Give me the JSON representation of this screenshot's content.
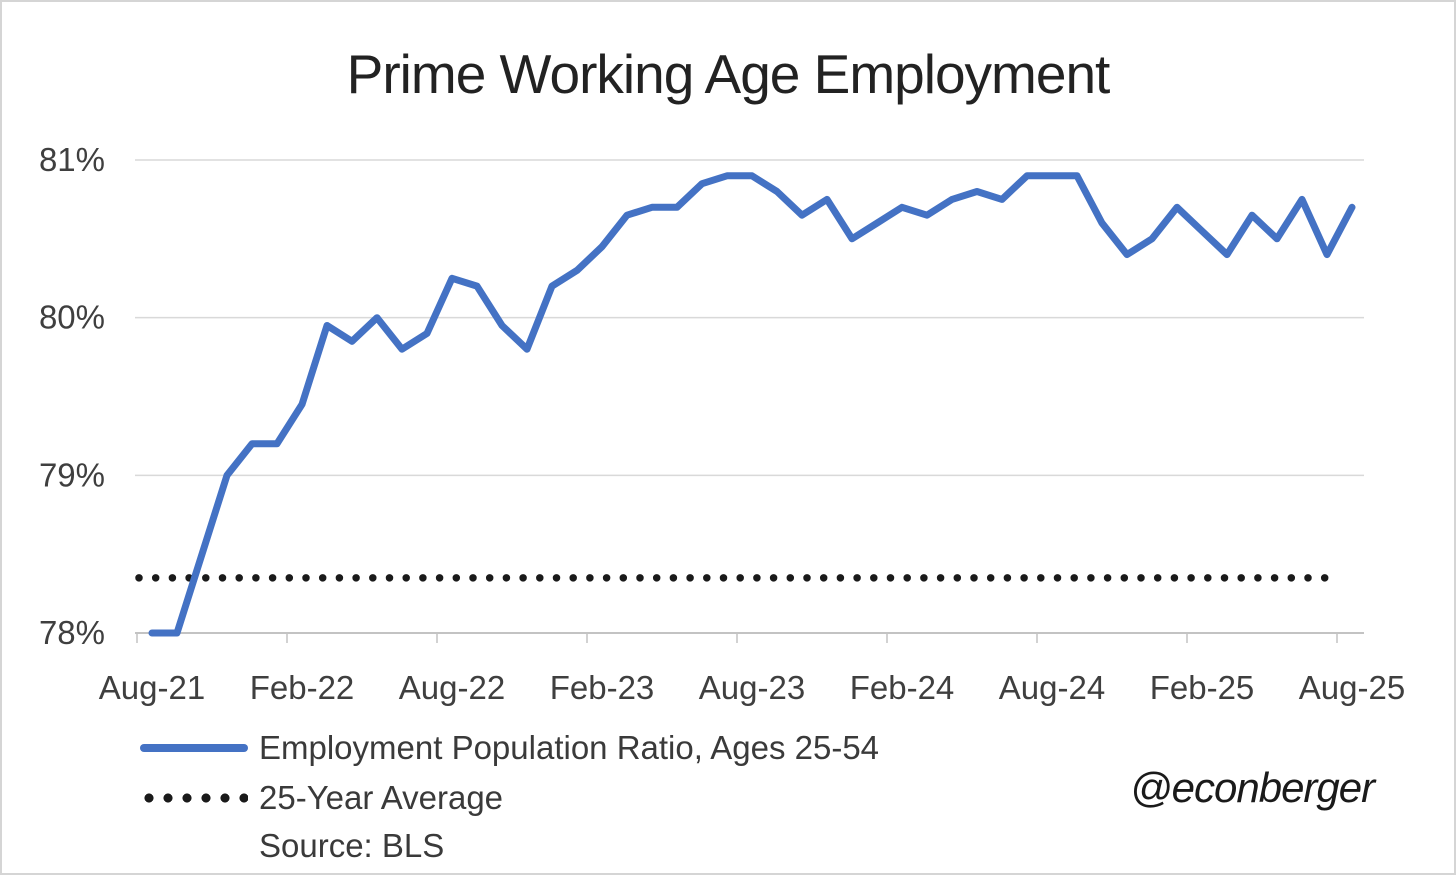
{
  "title": "Prime Working Age Employment",
  "attribution": "@econberger",
  "legend": {
    "series1_label": "Employment Population Ratio, Ages 25-54",
    "series2_label": "25-Year Average",
    "source": "Source: BLS"
  },
  "chart_data": {
    "type": "line",
    "title": "Prime Working Age Employment",
    "x": [
      "Aug-21",
      "Sep-21",
      "Oct-21",
      "Nov-21",
      "Dec-21",
      "Jan-22",
      "Feb-22",
      "Mar-22",
      "Apr-22",
      "May-22",
      "Jun-22",
      "Jul-22",
      "Aug-22",
      "Sep-22",
      "Oct-22",
      "Nov-22",
      "Dec-22",
      "Jan-23",
      "Feb-23",
      "Mar-23",
      "Apr-23",
      "May-23",
      "Jun-23",
      "Jul-23",
      "Aug-23",
      "Sep-23",
      "Oct-23",
      "Nov-23",
      "Dec-23",
      "Jan-24",
      "Feb-24",
      "Mar-24",
      "Apr-24",
      "May-24",
      "Jun-24",
      "Jul-24",
      "Aug-24",
      "Sep-24",
      "Oct-24",
      "Nov-24",
      "Dec-24",
      "Jan-25",
      "Feb-25",
      "Mar-25",
      "Apr-25",
      "May-25",
      "Jun-25",
      "Jul-25",
      "Aug-25"
    ],
    "series": [
      {
        "name": "Employment Population Ratio, Ages 25-54",
        "style": "solid",
        "color": "#4472C4",
        "values": [
          78.0,
          78.0,
          78.5,
          79.0,
          79.2,
          79.2,
          79.45,
          79.95,
          79.85,
          80.0,
          79.8,
          79.9,
          80.25,
          80.2,
          79.95,
          79.8,
          80.2,
          80.3,
          80.45,
          80.65,
          80.7,
          80.7,
          80.85,
          80.9,
          80.9,
          80.8,
          80.65,
          80.75,
          80.5,
          80.6,
          80.7,
          80.65,
          80.75,
          80.8,
          80.75,
          80.9,
          80.9,
          80.9,
          80.6,
          80.4,
          80.5,
          80.7,
          80.55,
          80.4,
          80.65,
          80.5,
          80.75,
          80.4,
          80.7
        ]
      },
      {
        "name": "25-Year Average",
        "style": "dotted",
        "color": "#1a1a1a",
        "value": 78.35
      }
    ],
    "ylim": [
      78,
      81
    ],
    "y_ticks": [
      {
        "label": "81%",
        "value": 81
      },
      {
        "label": "80%",
        "value": 80
      },
      {
        "label": "79%",
        "value": 79
      },
      {
        "label": "78%",
        "value": 78
      }
    ],
    "x_axis_labels": [
      "Aug-21",
      "Feb-22",
      "Aug-22",
      "Feb-23",
      "Aug-23",
      "Feb-24",
      "Aug-24",
      "Feb-25",
      "Aug-25"
    ],
    "grid": true,
    "legend_position": "bottom-left",
    "grid_color": "#d9d9d9",
    "axis_color": "#c3c3c3",
    "label_color": "#3f3f3f",
    "xlabel": "",
    "ylabel": "",
    "source": "Source: BLS"
  }
}
